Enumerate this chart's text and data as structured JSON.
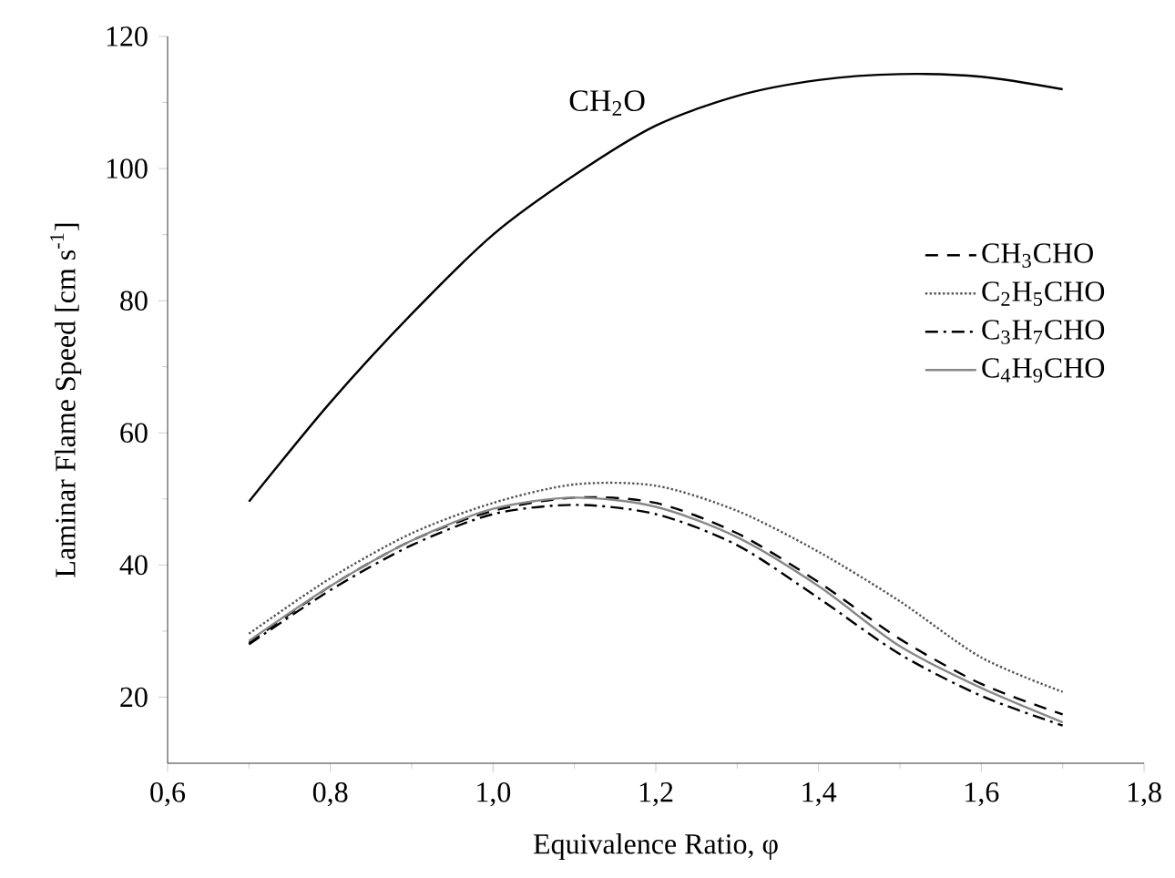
{
  "chart_data": {
    "type": "line",
    "xlabel": "Equivalence Ratio, φ",
    "ylabel": "Laminar Flame Speed [cm s$^{-1}$]",
    "x": [
      0.7,
      0.8,
      0.9,
      1.0,
      1.1,
      1.2,
      1.3,
      1.4,
      1.5,
      1.6,
      1.7
    ],
    "series": [
      {
        "name": "CH$_{2}$O",
        "color": "#000000",
        "line_style": "solid",
        "values": [
          49.6,
          64.6,
          78,
          90,
          99,
          106.5,
          111,
          113.4,
          114.3,
          113.9,
          112
        ]
      },
      {
        "name": "CH$_{3}$CHO",
        "color": "#000000",
        "line_style": "dashed",
        "values": [
          28.2,
          36.8,
          43.7,
          48.2,
          50.2,
          49.4,
          44.8,
          37.4,
          28.8,
          22,
          17.4
        ]
      },
      {
        "name": "C$_{2}$H$_{5}$CHO",
        "color": "#555555",
        "line_style": "dotted",
        "values": [
          29.6,
          38,
          44.8,
          49.4,
          52.2,
          52,
          48.2,
          42,
          34.5,
          26,
          20.8
        ]
      },
      {
        "name": "C$_{3}$H$_{7}$CHO",
        "color": "#000000",
        "line_style": "dashdot",
        "values": [
          28,
          36.2,
          43,
          47.7,
          49.1,
          47.7,
          43,
          35,
          26.5,
          20.2,
          15.7
        ]
      },
      {
        "name": "C$_{4}$H$_{9}$CHO",
        "color": "#888888",
        "line_style": "solid",
        "values": [
          28.5,
          36.8,
          43.7,
          48.5,
          50.2,
          48.8,
          44.2,
          36.8,
          27.7,
          21.4,
          16.2
        ]
      }
    ],
    "xlim": [
      0.6,
      1.8
    ],
    "ylim": [
      10,
      120
    ],
    "xticks": [
      {
        "value": 0.6,
        "label": "0,6"
      },
      {
        "value": 0.8,
        "label": "0,8"
      },
      {
        "value": 1.0,
        "label": "1,0"
      },
      {
        "value": 1.2,
        "label": "1,2"
      },
      {
        "value": 1.4,
        "label": "1,4"
      },
      {
        "value": 1.6,
        "label": "1,6"
      },
      {
        "value": 1.8,
        "label": "1,8"
      }
    ],
    "yticks": [
      20,
      40,
      60,
      80,
      100,
      120
    ],
    "legend": "right",
    "grid": false
  }
}
